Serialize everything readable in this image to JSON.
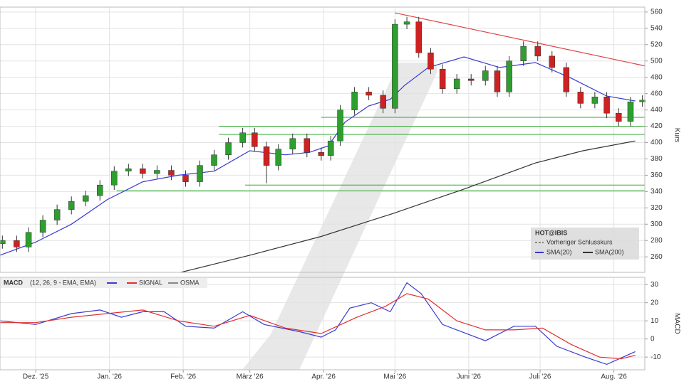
{
  "chart_data": [
    {
      "type": "candlestick",
      "axis_label": "Kurs",
      "xlim": [
        -15,
        256
      ],
      "ylim": [
        241,
        566
      ],
      "yticks": [
        260,
        280,
        300,
        320,
        340,
        360,
        380,
        400,
        420,
        440,
        460,
        480,
        500,
        520,
        540,
        560
      ],
      "up_color": "#2e9e2e",
      "down_color": "#cc2222",
      "x": [
        -14,
        -8,
        -3,
        3,
        9,
        15,
        21,
        27,
        33,
        39,
        45,
        51,
        57,
        63,
        69,
        75,
        81,
        87,
        92,
        97,
        102,
        108,
        114,
        120,
        124,
        128,
        134,
        140,
        146,
        151,
        156,
        161,
        166,
        171,
        177,
        183,
        189,
        194,
        199,
        205,
        211,
        217,
        223,
        229,
        235,
        240,
        245,
        250,
        255
      ],
      "open": [
        276,
        280,
        272,
        290,
        305,
        318,
        328,
        335,
        348,
        365,
        368,
        362,
        366,
        360,
        352,
        372,
        385,
        400,
        412,
        395,
        372,
        392,
        405,
        388,
        384,
        402,
        440,
        462,
        458,
        442,
        545,
        548,
        510,
        490,
        466,
        478,
        476,
        488,
        462,
        500,
        518,
        506,
        492,
        462,
        448,
        456,
        436,
        426,
        450
      ],
      "high": [
        286,
        286,
        296,
        311,
        324,
        334,
        341,
        354,
        371,
        374,
        374,
        372,
        372,
        366,
        378,
        391,
        406,
        418,
        418,
        401,
        398,
        411,
        411,
        394,
        408,
        446,
        468,
        468,
        464,
        551,
        554,
        554,
        516,
        496,
        484,
        484,
        494,
        494,
        506,
        524,
        524,
        512,
        498,
        468,
        462,
        462,
        442,
        456,
        458
      ],
      "low": [
        270,
        266,
        266,
        284,
        299,
        312,
        322,
        329,
        342,
        359,
        356,
        356,
        354,
        346,
        346,
        366,
        379,
        394,
        389,
        350,
        366,
        386,
        382,
        378,
        378,
        396,
        434,
        452,
        436,
        436,
        539,
        504,
        484,
        460,
        460,
        470,
        470,
        456,
        456,
        494,
        500,
        486,
        456,
        442,
        442,
        430,
        420,
        420,
        444
      ],
      "close": [
        280,
        272,
        290,
        305,
        318,
        328,
        335,
        348,
        365,
        368,
        362,
        366,
        360,
        352,
        372,
        385,
        400,
        412,
        395,
        372,
        392,
        405,
        388,
        384,
        402,
        440,
        462,
        458,
        442,
        545,
        548,
        510,
        490,
        466,
        478,
        476,
        488,
        462,
        500,
        518,
        506,
        492,
        462,
        448,
        456,
        436,
        426,
        450,
        452
      ],
      "series": [
        {
          "name": "SMA(20)",
          "color": "#3a3ad0",
          "x": [
            -15,
            0,
            15,
            30,
            45,
            60,
            75,
            90,
            105,
            115,
            123,
            130,
            140,
            149,
            155,
            165,
            180,
            195,
            210,
            225,
            240,
            252
          ],
          "values": [
            262,
            278,
            300,
            330,
            352,
            360,
            365,
            390,
            385,
            388,
            396,
            425,
            445,
            453,
            470,
            492,
            505,
            492,
            498,
            479,
            457,
            451
          ]
        },
        {
          "name": "SMA(200)",
          "color": "#333333",
          "x": [
            61,
            90,
            120,
            150,
            180,
            210,
            230,
            252
          ],
          "values": [
            241,
            262,
            285,
            313,
            343,
            375,
            390,
            402
          ]
        }
      ],
      "support_lines": [
        {
          "value": 431,
          "start": 120,
          "color": "#2ea82e"
        },
        {
          "value": 420,
          "start": 77,
          "color": "#2ea82e"
        },
        {
          "value": 410,
          "start": 77,
          "color": "#2ea82e"
        },
        {
          "value": 348,
          "start": 88,
          "color": "#2ea82e"
        },
        {
          "value": 341,
          "start": 34,
          "color": "#2ea82e"
        }
      ],
      "trend_line": {
        "x": [
          151,
          256
        ],
        "y": [
          559,
          494
        ],
        "color": "#e04040"
      },
      "legend": {
        "symbol": "HOT@IBIS",
        "previous_close": "Vorheriger Schlusskurs"
      }
    },
    {
      "type": "line",
      "axis_label": "MACD",
      "label": "MACD",
      "params": "(12, 26, 9 - EMA, EMA)",
      "osma": "OSMA",
      "xlim": [
        -15,
        256
      ],
      "ylim": [
        -17,
        34
      ],
      "yticks": [
        -10,
        0,
        10,
        20,
        30
      ],
      "xticks": [
        {
          "value": 0,
          "label": "Dez. '25"
        },
        {
          "value": 31,
          "label": "Jan. '26"
        },
        {
          "value": 62,
          "label": "Feb. '26"
        },
        {
          "value": 90,
          "label": "März '26"
        },
        {
          "value": 121,
          "label": "Apr. '26"
        },
        {
          "value": 151,
          "label": "Mai '26"
        },
        {
          "value": 182,
          "label": "Juni '26"
        },
        {
          "value": 212,
          "label": "Juli '26"
        },
        {
          "value": 243,
          "label": "Aug. '26"
        }
      ],
      "series": [
        {
          "name": "MACD",
          "color": "#3a3ad0",
          "x": [
            -15,
            0,
            15,
            27,
            36,
            45,
            54,
            63,
            75,
            87,
            96,
            111,
            120,
            126,
            132,
            141,
            149,
            156,
            162,
            171,
            183,
            189,
            201,
            210,
            219,
            231,
            240,
            252
          ],
          "values": [
            10,
            8,
            14,
            16,
            12,
            15,
            15,
            7,
            6,
            15,
            8,
            4,
            1,
            5,
            17,
            20,
            15,
            31,
            25,
            8,
            2,
            -1,
            7,
            7,
            -4,
            -10,
            -14,
            -7
          ]
        },
        {
          "name": "SIGNAL",
          "color": "#e03030",
          "x": [
            -15,
            0,
            15,
            30,
            45,
            60,
            75,
            90,
            105,
            120,
            135,
            147,
            156,
            165,
            177,
            189,
            201,
            213,
            225,
            237,
            246,
            252
          ],
          "values": [
            9,
            9,
            12,
            14,
            16,
            10,
            7,
            13,
            6,
            3,
            12,
            18,
            25,
            22,
            10,
            5,
            5,
            6,
            -3,
            -10,
            -11,
            -9
          ]
        }
      ]
    }
  ]
}
